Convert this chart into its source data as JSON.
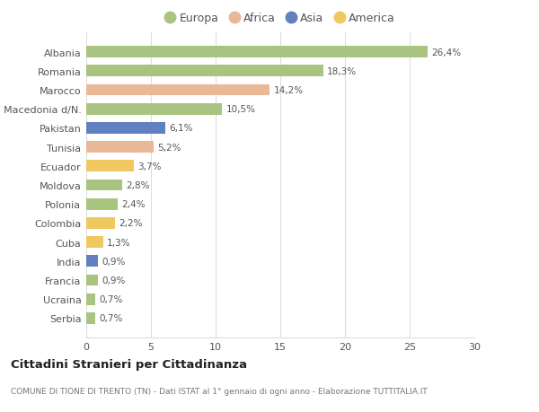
{
  "countries": [
    "Albania",
    "Romania",
    "Marocco",
    "Macedonia d/N.",
    "Pakistan",
    "Tunisia",
    "Ecuador",
    "Moldova",
    "Polonia",
    "Colombia",
    "Cuba",
    "India",
    "Francia",
    "Ucraina",
    "Serbia"
  ],
  "values": [
    26.4,
    18.3,
    14.2,
    10.5,
    6.1,
    5.2,
    3.7,
    2.8,
    2.4,
    2.2,
    1.3,
    0.9,
    0.9,
    0.7,
    0.7
  ],
  "labels": [
    "26,4%",
    "18,3%",
    "14,2%",
    "10,5%",
    "6,1%",
    "5,2%",
    "3,7%",
    "2,8%",
    "2,4%",
    "2,2%",
    "1,3%",
    "0,9%",
    "0,9%",
    "0,7%",
    "0,7%"
  ],
  "continents": [
    "Europa",
    "Europa",
    "Africa",
    "Europa",
    "Asia",
    "Africa",
    "America",
    "Europa",
    "Europa",
    "America",
    "America",
    "Asia",
    "Europa",
    "Europa",
    "Europa"
  ],
  "continent_colors": {
    "Europa": "#a8c480",
    "Africa": "#e8b898",
    "Asia": "#6080c0",
    "America": "#f0c860"
  },
  "legend_order": [
    "Europa",
    "Africa",
    "Asia",
    "America"
  ],
  "title": "Cittadini Stranieri per Cittadinanza",
  "subtitle": "COMUNE DI TIONE DI TRENTO (TN) - Dati ISTAT al 1° gennaio di ogni anno - Elaborazione TUTTITALIA.IT",
  "xlim": [
    0,
    30
  ],
  "xticks": [
    0,
    5,
    10,
    15,
    20,
    25,
    30
  ],
  "bg_color": "#ffffff",
  "grid_color": "#dddddd"
}
